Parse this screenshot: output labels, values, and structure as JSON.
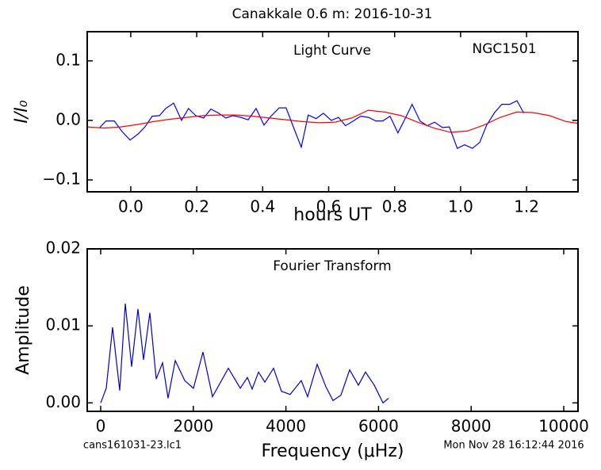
{
  "title": "Canakkale 0.6 m:  2016-10-31",
  "footer_left": "cans161031-23.lc1",
  "footer_right": "Mon Nov 28 16:12:44 2016",
  "chart_data": [
    {
      "type": "line",
      "xlabel": "hours UT",
      "ylabel": "I/I₀",
      "annotations": [
        "Light Curve",
        "NGC1501"
      ],
      "xlim": [
        -0.132,
        1.356
      ],
      "ylim": [
        -0.12,
        0.149
      ],
      "xticks": [
        {
          "value": 0.0,
          "label": "0.0"
        },
        0.2,
        0.4,
        0.6,
        0.8,
        {
          "value": 1.0,
          "label": "1.0"
        },
        1.2
      ],
      "yticks": [
        {
          "value": -0.1,
          "label": "−0.1"
        },
        {
          "value": 0.0,
          "label": "0.0"
        },
        0.1
      ],
      "series": [
        {
          "color": "#0000ff",
          "x": [
            -0.094,
            -0.075,
            -0.05,
            -0.026,
            -0.002,
            0.022,
            0.043,
            0.065,
            0.087,
            0.106,
            0.13,
            0.154,
            0.175,
            0.197,
            0.221,
            0.243,
            0.267,
            0.288,
            0.31,
            0.334,
            0.356,
            0.38,
            0.404,
            0.425,
            0.45,
            0.471,
            0.493,
            0.517,
            0.538,
            0.562,
            0.584,
            0.608,
            0.63,
            0.651,
            0.675,
            0.697,
            0.721,
            0.743,
            0.764,
            0.786,
            0.81,
            0.832,
            0.853,
            0.877,
            0.899,
            0.921,
            0.945,
            0.966,
            0.99,
            1.012,
            1.036,
            1.058,
            1.079,
            1.103,
            1.125,
            1.149,
            1.171,
            1.192
          ],
          "values": [
            -0.012,
            -0.001,
            -0.001,
            -0.019,
            -0.033,
            -0.023,
            -0.011,
            0.007,
            0.008,
            0.02,
            0.029,
            0.0,
            0.02,
            0.008,
            0.004,
            0.019,
            0.012,
            0.004,
            0.008,
            0.005,
            0.001,
            0.02,
            -0.008,
            0.007,
            0.021,
            0.021,
            -0.011,
            -0.045,
            0.009,
            0.003,
            0.012,
            0.0,
            0.005,
            -0.009,
            -0.001,
            0.007,
            0.005,
            -0.001,
            -0.001,
            0.007,
            -0.021,
            0.003,
            0.027,
            -0.001,
            -0.009,
            -0.003,
            -0.012,
            -0.011,
            -0.047,
            -0.041,
            -0.047,
            -0.037,
            -0.008,
            0.013,
            0.027,
            0.027,
            0.033,
            0.012
          ]
        },
        {
          "color": "#ff0000",
          "x": [
            -0.132,
            -0.08,
            -0.03,
            0.02,
            0.07,
            0.12,
            0.17,
            0.22,
            0.27,
            0.32,
            0.37,
            0.42,
            0.47,
            0.52,
            0.57,
            0.62,
            0.67,
            0.72,
            0.77,
            0.82,
            0.87,
            0.92,
            0.97,
            1.02,
            1.07,
            1.12,
            1.17,
            1.22,
            1.27,
            1.32,
            1.356
          ],
          "values": [
            -0.011,
            -0.013,
            -0.011,
            -0.007,
            -0.002,
            0.002,
            0.005,
            0.008,
            0.009,
            0.009,
            0.007,
            0.004,
            0.001,
            -0.002,
            -0.004,
            -0.003,
            0.004,
            0.017,
            0.014,
            0.008,
            -0.003,
            -0.013,
            -0.02,
            -0.018,
            -0.008,
            0.005,
            0.014,
            0.013,
            0.008,
            -0.002,
            -0.005
          ]
        }
      ]
    },
    {
      "type": "line",
      "xlabel": "Frequency (μHz)",
      "ylabel": "Amplitude",
      "annotations": [
        "Fourier Transform"
      ],
      "xlim": [
        -291,
        10308
      ],
      "ylim": [
        -0.0011,
        0.02
      ],
      "xticks": [
        0,
        2000,
        4000,
        6000,
        8000,
        10000
      ],
      "yticks": [
        {
          "value": 0.0,
          "label": "0.00"
        },
        0.01,
        0.02
      ],
      "series": [
        {
          "color": "#0000cc",
          "x": [
            0,
            120,
            257,
            411,
            531,
            668,
            805,
            925,
            1062,
            1199,
            1336,
            1455,
            1610,
            1815,
            2003,
            2209,
            2414,
            2757,
            3014,
            3168,
            3271,
            3408,
            3545,
            3733,
            3904,
            4092,
            4332,
            4469,
            4675,
            4863,
            5017,
            5188,
            5377,
            5565,
            5719,
            5908,
            6096,
            6216
          ],
          "values": [
            0.0,
            0.0019,
            0.0098,
            0.0016,
            0.0129,
            0.0047,
            0.0122,
            0.0056,
            0.0117,
            0.0031,
            0.0052,
            0.0006,
            0.0055,
            0.0029,
            0.0019,
            0.0066,
            0.0008,
            0.0045,
            0.0019,
            0.0033,
            0.0018,
            0.004,
            0.0027,
            0.0045,
            0.0015,
            0.0011,
            0.0029,
            0.0008,
            0.005,
            0.0021,
            0.0003,
            0.001,
            0.0043,
            0.0023,
            0.004,
            0.0023,
            0.0,
            0.0006
          ]
        }
      ]
    }
  ]
}
